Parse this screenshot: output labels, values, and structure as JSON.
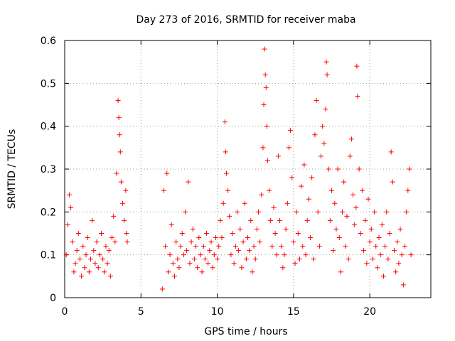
{
  "chart_data": {
    "type": "scatter",
    "title": "Day 273 of 2016, SRMTID for receiver maba",
    "xlabel": "GPS time / hours",
    "ylabel": "SRMTID / TECUs",
    "xlim": [
      0,
      24
    ],
    "ylim": [
      0,
      0.6
    ],
    "x_ticks": [
      0,
      5,
      10,
      15,
      20
    ],
    "x_tick_labels": [
      "0",
      "5",
      "10",
      "15",
      "20"
    ],
    "y_ticks": [
      0,
      0.1,
      0.2,
      0.3,
      0.4,
      0.5,
      0.6
    ],
    "y_tick_labels": [
      "0",
      "0.1",
      "0.2",
      "0.3",
      "0.4",
      "0.5",
      "0.6"
    ],
    "grid": true,
    "legend": "none",
    "marker": "plus",
    "color": "#ff0000",
    "series": [
      {
        "points": [
          [
            0.1,
            0.1
          ],
          [
            0.2,
            0.17
          ],
          [
            0.3,
            0.24
          ],
          [
            0.4,
            0.21
          ],
          [
            0.5,
            0.13
          ],
          [
            0.6,
            0.06
          ],
          [
            0.7,
            0.08
          ],
          [
            0.8,
            0.11
          ],
          [
            0.9,
            0.15
          ],
          [
            1.0,
            0.09
          ],
          [
            1.1,
            0.05
          ],
          [
            1.2,
            0.12
          ],
          [
            1.3,
            0.07
          ],
          [
            1.4,
            0.1
          ],
          [
            1.5,
            0.14
          ],
          [
            1.6,
            0.06
          ],
          [
            1.7,
            0.09
          ],
          [
            1.8,
            0.18
          ],
          [
            1.9,
            0.11
          ],
          [
            2.0,
            0.08
          ],
          [
            2.1,
            0.13
          ],
          [
            2.2,
            0.07
          ],
          [
            2.3,
            0.1
          ],
          [
            2.4,
            0.15
          ],
          [
            2.5,
            0.09
          ],
          [
            2.6,
            0.06
          ],
          [
            2.7,
            0.12
          ],
          [
            2.8,
            0.08
          ],
          [
            2.9,
            0.11
          ],
          [
            3.0,
            0.05
          ],
          [
            3.1,
            0.14
          ],
          [
            3.2,
            0.19
          ],
          [
            3.3,
            0.13
          ],
          [
            3.4,
            0.29
          ],
          [
            3.5,
            0.46
          ],
          [
            3.55,
            0.42
          ],
          [
            3.6,
            0.38
          ],
          [
            3.65,
            0.34
          ],
          [
            3.7,
            0.27
          ],
          [
            3.8,
            0.22
          ],
          [
            3.9,
            0.18
          ],
          [
            4.0,
            0.25
          ],
          [
            4.05,
            0.15
          ],
          [
            4.1,
            0.13
          ],
          [
            6.4,
            0.02
          ],
          [
            6.5,
            0.25
          ],
          [
            6.6,
            0.12
          ],
          [
            6.7,
            0.29
          ],
          [
            6.8,
            0.06
          ],
          [
            6.9,
            0.1
          ],
          [
            7.0,
            0.17
          ],
          [
            7.1,
            0.08
          ],
          [
            7.2,
            0.05
          ],
          [
            7.3,
            0.13
          ],
          [
            7.4,
            0.09
          ],
          [
            7.5,
            0.07
          ],
          [
            7.6,
            0.12
          ],
          [
            7.7,
            0.15
          ],
          [
            7.8,
            0.1
          ],
          [
            7.9,
            0.2
          ],
          [
            8.0,
            0.11
          ],
          [
            8.1,
            0.27
          ],
          [
            8.2,
            0.08
          ],
          [
            8.3,
            0.13
          ],
          [
            8.4,
            0.16
          ],
          [
            8.5,
            0.09
          ],
          [
            8.6,
            0.12
          ],
          [
            8.7,
            0.07
          ],
          [
            8.8,
            0.14
          ],
          [
            8.9,
            0.1
          ],
          [
            9.0,
            0.06
          ],
          [
            9.1,
            0.12
          ],
          [
            9.2,
            0.09
          ],
          [
            9.3,
            0.15
          ],
          [
            9.4,
            0.08
          ],
          [
            9.5,
            0.11
          ],
          [
            9.6,
            0.13
          ],
          [
            9.7,
            0.07
          ],
          [
            9.8,
            0.1
          ],
          [
            9.9,
            0.14
          ],
          [
            10.0,
            0.09
          ],
          [
            10.1,
            0.12
          ],
          [
            10.2,
            0.18
          ],
          [
            10.3,
            0.14
          ],
          [
            10.4,
            0.22
          ],
          [
            10.5,
            0.41
          ],
          [
            10.55,
            0.34
          ],
          [
            10.6,
            0.29
          ],
          [
            10.7,
            0.25
          ],
          [
            10.8,
            0.19
          ],
          [
            10.9,
            0.1
          ],
          [
            11.0,
            0.15
          ],
          [
            11.1,
            0.08
          ],
          [
            11.2,
            0.12
          ],
          [
            11.3,
            0.2
          ],
          [
            11.4,
            0.11
          ],
          [
            11.5,
            0.16
          ],
          [
            11.6,
            0.07
          ],
          [
            11.7,
            0.13
          ],
          [
            11.8,
            0.22
          ],
          [
            11.9,
            0.09
          ],
          [
            12.0,
            0.14
          ],
          [
            12.1,
            0.11
          ],
          [
            12.2,
            0.18
          ],
          [
            12.3,
            0.06
          ],
          [
            12.4,
            0.12
          ],
          [
            12.5,
            0.09
          ],
          [
            12.6,
            0.16
          ],
          [
            12.7,
            0.2
          ],
          [
            12.8,
            0.13
          ],
          [
            12.9,
            0.24
          ],
          [
            13.0,
            0.35
          ],
          [
            13.05,
            0.45
          ],
          [
            13.1,
            0.58
          ],
          [
            13.15,
            0.52
          ],
          [
            13.2,
            0.49
          ],
          [
            13.25,
            0.4
          ],
          [
            13.3,
            0.32
          ],
          [
            13.4,
            0.25
          ],
          [
            13.5,
            0.18
          ],
          [
            13.6,
            0.12
          ],
          [
            13.7,
            0.21
          ],
          [
            13.8,
            0.15
          ],
          [
            13.9,
            0.1
          ],
          [
            14.0,
            0.33
          ],
          [
            14.1,
            0.18
          ],
          [
            14.2,
            0.12
          ],
          [
            14.3,
            0.07
          ],
          [
            14.4,
            0.1
          ],
          [
            14.5,
            0.16
          ],
          [
            14.6,
            0.22
          ],
          [
            14.7,
            0.35
          ],
          [
            14.8,
            0.39
          ],
          [
            14.9,
            0.28
          ],
          [
            15.0,
            0.13
          ],
          [
            15.1,
            0.08
          ],
          [
            15.2,
            0.2
          ],
          [
            15.3,
            0.15
          ],
          [
            15.4,
            0.09
          ],
          [
            15.5,
            0.26
          ],
          [
            15.6,
            0.12
          ],
          [
            15.7,
            0.31
          ],
          [
            15.8,
            0.1
          ],
          [
            15.9,
            0.18
          ],
          [
            16.0,
            0.23
          ],
          [
            16.1,
            0.14
          ],
          [
            16.2,
            0.28
          ],
          [
            16.3,
            0.09
          ],
          [
            16.4,
            0.38
          ],
          [
            16.5,
            0.46
          ],
          [
            16.6,
            0.2
          ],
          [
            16.7,
            0.12
          ],
          [
            16.8,
            0.33
          ],
          [
            16.9,
            0.4
          ],
          [
            17.0,
            0.36
          ],
          [
            17.1,
            0.44
          ],
          [
            17.15,
            0.55
          ],
          [
            17.2,
            0.52
          ],
          [
            17.3,
            0.3
          ],
          [
            17.4,
            0.18
          ],
          [
            17.5,
            0.25
          ],
          [
            17.6,
            0.11
          ],
          [
            17.7,
            0.22
          ],
          [
            17.8,
            0.16
          ],
          [
            17.9,
            0.3
          ],
          [
            18.0,
            0.14
          ],
          [
            18.1,
            0.06
          ],
          [
            18.2,
            0.2
          ],
          [
            18.3,
            0.27
          ],
          [
            18.4,
            0.12
          ],
          [
            18.5,
            0.19
          ],
          [
            18.6,
            0.09
          ],
          [
            18.7,
            0.33
          ],
          [
            18.8,
            0.37
          ],
          [
            18.9,
            0.24
          ],
          [
            19.0,
            0.17
          ],
          [
            19.1,
            0.21
          ],
          [
            19.15,
            0.54
          ],
          [
            19.2,
            0.47
          ],
          [
            19.3,
            0.3
          ],
          [
            19.4,
            0.15
          ],
          [
            19.5,
            0.25
          ],
          [
            19.6,
            0.11
          ],
          [
            19.7,
            0.18
          ],
          [
            19.8,
            0.08
          ],
          [
            19.9,
            0.23
          ],
          [
            20.0,
            0.13
          ],
          [
            20.1,
            0.16
          ],
          [
            20.2,
            0.09
          ],
          [
            20.3,
            0.2
          ],
          [
            20.4,
            0.12
          ],
          [
            20.5,
            0.07
          ],
          [
            20.6,
            0.14
          ],
          [
            20.7,
            0.1
          ],
          [
            20.8,
            0.17
          ],
          [
            20.9,
            0.05
          ],
          [
            21.0,
            0.12
          ],
          [
            21.1,
            0.2
          ],
          [
            21.2,
            0.09
          ],
          [
            21.3,
            0.15
          ],
          [
            21.4,
            0.34
          ],
          [
            21.5,
            0.27
          ],
          [
            21.6,
            0.11
          ],
          [
            21.7,
            0.06
          ],
          [
            21.8,
            0.13
          ],
          [
            21.9,
            0.08
          ],
          [
            22.0,
            0.16
          ],
          [
            22.1,
            0.1
          ],
          [
            22.2,
            0.03
          ],
          [
            22.3,
            0.12
          ],
          [
            22.4,
            0.2
          ],
          [
            22.5,
            0.25
          ],
          [
            22.6,
            0.3
          ],
          [
            22.7,
            0.1
          ]
        ]
      }
    ]
  }
}
